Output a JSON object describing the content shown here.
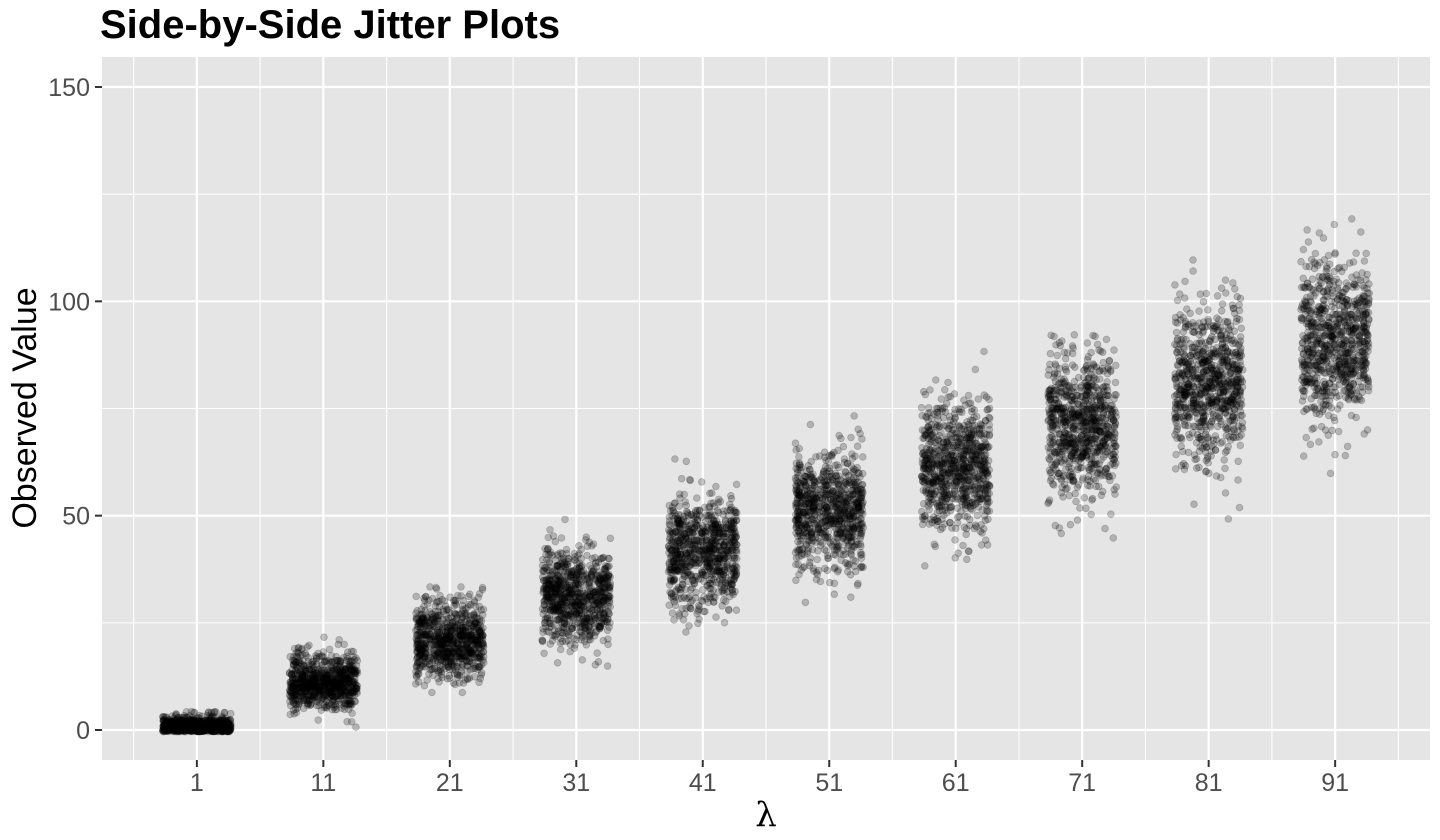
{
  "chart_data": {
    "type": "scatter",
    "title": "Side-by-Side Jitter Plots",
    "xlabel": "λ",
    "ylabel": "Observed Value",
    "categories": [
      "1",
      "11",
      "21",
      "31",
      "41",
      "51",
      "61",
      "71",
      "81",
      "91"
    ],
    "lambda": [
      1,
      11,
      21,
      31,
      41,
      51,
      61,
      71,
      81,
      91
    ],
    "points_per_group": 800,
    "jitter_width": 0.27,
    "ylim": [
      -7,
      157
    ],
    "yticks": [
      0,
      50,
      100,
      150
    ],
    "ytick_labels": [
      "0",
      "50",
      "100",
      "150"
    ],
    "grid": true,
    "background": "#e5e5e5",
    "grid_color": "#ffffff",
    "point_color": "#000000",
    "point_opacity": 0.22
  }
}
